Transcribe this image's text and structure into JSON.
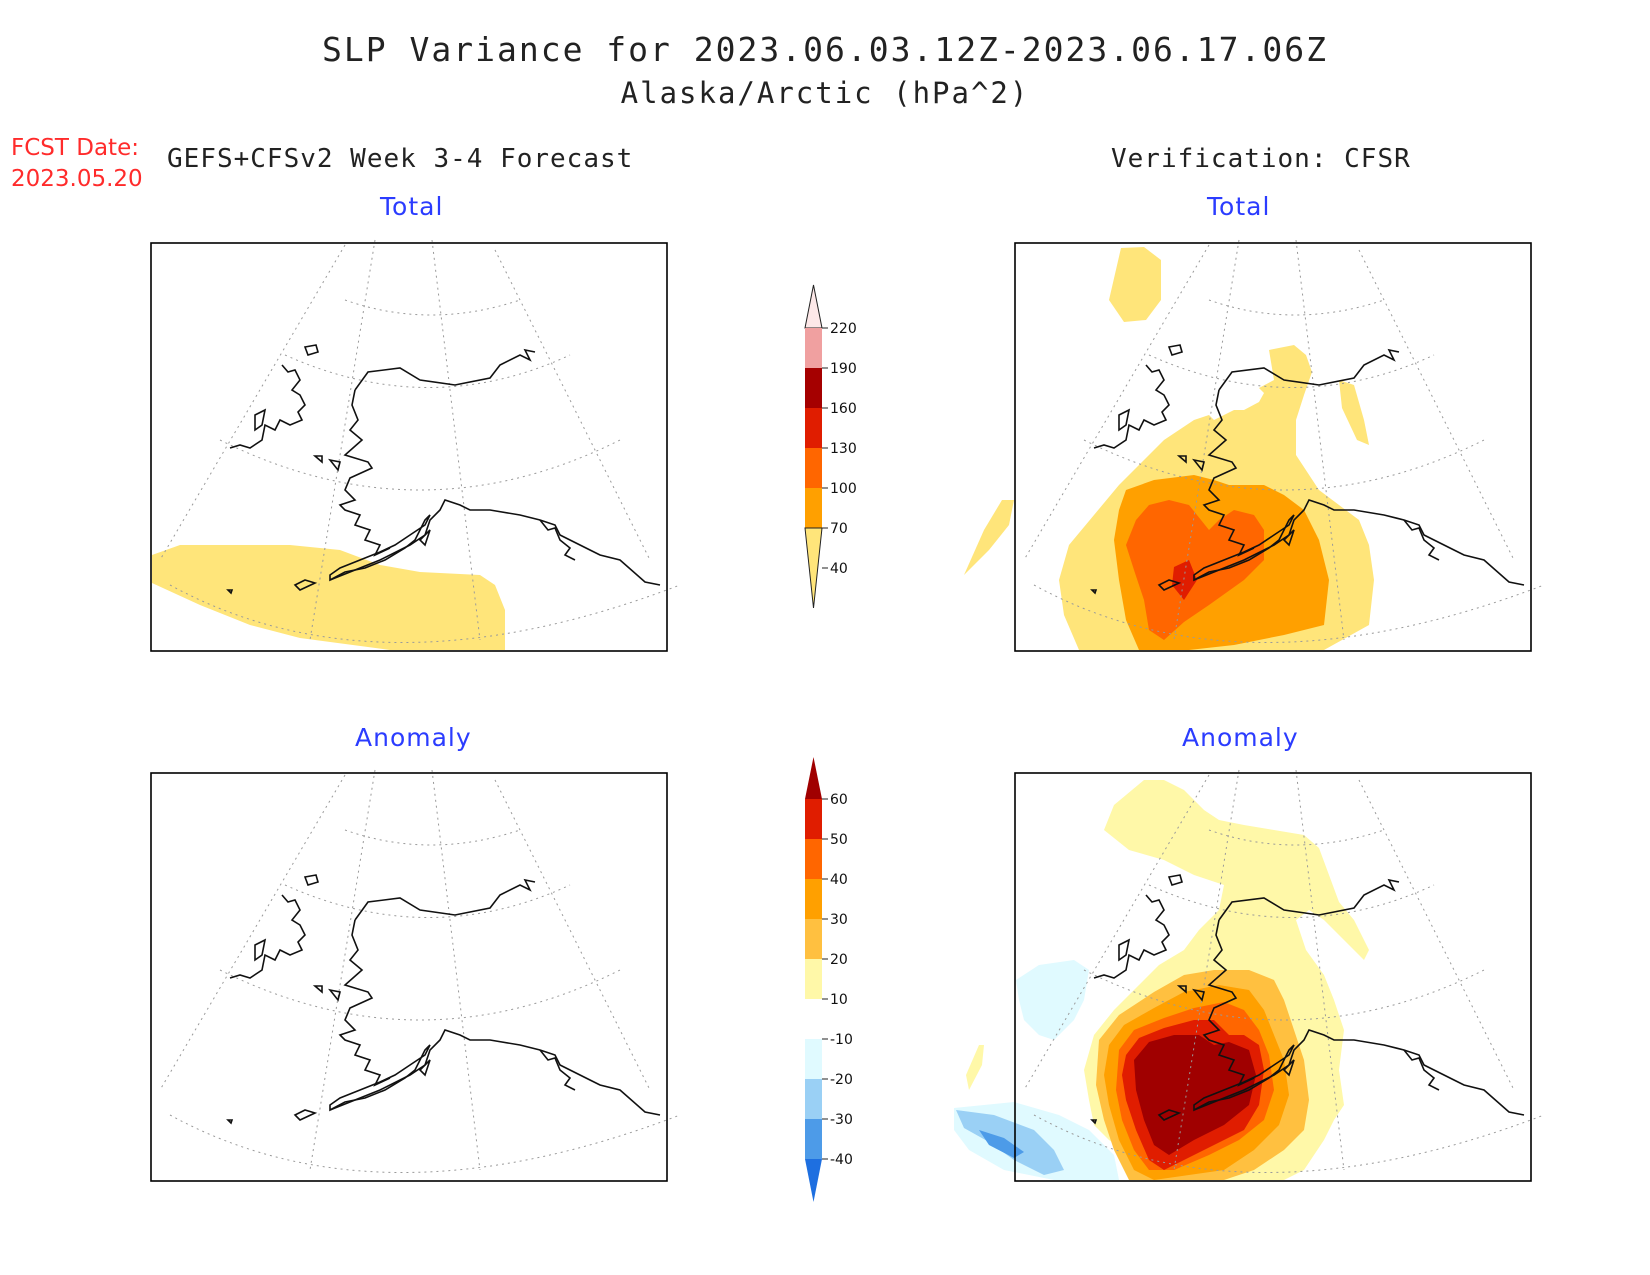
{
  "title": "SLP Variance for 2023.06.03.12Z-2023.06.17.06Z",
  "subtitle": "Alaska/Arctic (hPa^2)",
  "forecast_date": {
    "label": "FCST Date:",
    "value": "2023.05.20"
  },
  "left_column": {
    "header": "GEFS+CFSv2 Week 3-4 Forecast"
  },
  "right_column": {
    "header": "Verification: CFSR"
  },
  "panels": {
    "forecast_total": {
      "title": "Total"
    },
    "verification_total": {
      "title": "Total"
    },
    "forecast_anomaly": {
      "title": "Anomaly"
    },
    "verification_anomaly": {
      "title": "Anomaly"
    }
  },
  "colorbars": {
    "total": {
      "labels": [
        "220",
        "190",
        "160",
        "130",
        "100",
        "70",
        "40"
      ],
      "colors": [
        "#fde8e8",
        "#f0a0a0",
        "#a50000",
        "#e01d00",
        "#ff6600",
        "#ffa000",
        "#ffe57a"
      ]
    },
    "anomaly": {
      "labels": [
        "60",
        "50",
        "40",
        "30",
        "20",
        "10",
        "-10",
        "-20",
        "-30",
        "-40"
      ],
      "colors": [
        "#a00000",
        "#e01d00",
        "#ff6600",
        "#ffa000",
        "#ffc040",
        "#fff8a8",
        "#ffffff",
        "#e0faff",
        "#9ad0f5",
        "#4d9be8",
        "#1e6fe0"
      ]
    }
  },
  "colors": {
    "title_text": "#222222",
    "panel_title": "#2b3cff",
    "fcst_date": "#ff2b2b"
  }
}
